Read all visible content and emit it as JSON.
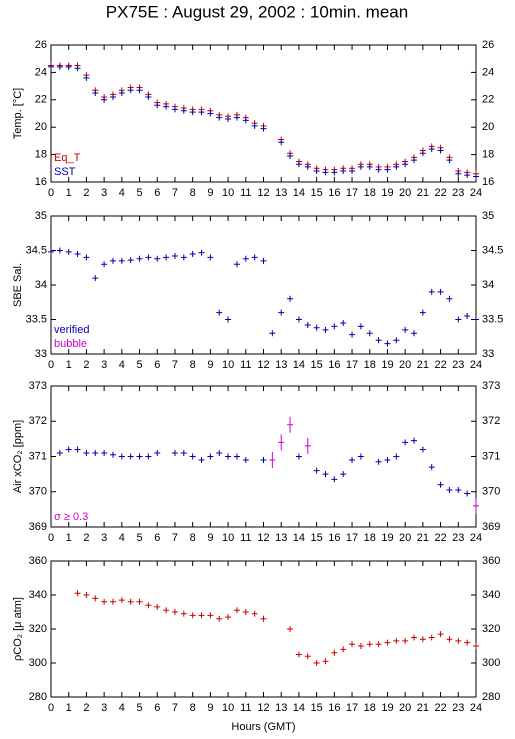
{
  "title": "PX75E : August 29, 2002 : 10min. mean",
  "chart_data": [
    {
      "type": "scatter",
      "y_label": "Temp. [°C]",
      "xlim": [
        0,
        24
      ],
      "ylim": [
        16,
        26
      ],
      "xticks": [
        0,
        1,
        2,
        3,
        4,
        5,
        6,
        7,
        8,
        9,
        10,
        11,
        12,
        13,
        14,
        15,
        16,
        17,
        18,
        19,
        20,
        21,
        22,
        23,
        24
      ],
      "yticks": [
        16,
        18,
        20,
        22,
        24,
        26
      ],
      "legend": "lower left",
      "x": [
        0,
        0.5,
        1,
        1.5,
        2,
        2.5,
        3,
        3.5,
        4,
        4.5,
        5,
        5.5,
        6,
        6.5,
        7,
        7.5,
        8,
        8.5,
        9,
        9.5,
        10,
        10.5,
        11,
        11.5,
        12,
        12.5,
        13,
        13.5,
        14,
        14.5,
        15,
        15.5,
        16,
        16.5,
        17,
        17.5,
        18,
        18.5,
        19,
        19.5,
        20,
        20.5,
        21,
        21.5,
        22,
        22.5,
        23,
        23.5,
        24
      ],
      "series": [
        {
          "name": "Eq_T",
          "color": "#cc0000",
          "values": [
            24.5,
            24.5,
            24.5,
            24.5,
            23.8,
            22.7,
            22.2,
            22.4,
            22.7,
            22.9,
            22.9,
            22.4,
            21.8,
            21.7,
            21.5,
            21.4,
            21.3,
            21.3,
            21.2,
            20.9,
            20.8,
            20.9,
            20.7,
            20.3,
            20.1,
            null,
            19.1,
            18.1,
            17.5,
            17.3,
            17.0,
            16.9,
            16.9,
            17.0,
            17.0,
            17.3,
            17.3,
            17.1,
            17.1,
            17.3,
            17.5,
            17.8,
            18.3,
            18.6,
            18.5,
            17.8,
            16.8,
            16.7,
            16.6
          ]
        },
        {
          "name": "SST",
          "color": "#0000aa",
          "values": [
            24.4,
            24.4,
            24.4,
            24.3,
            23.6,
            22.5,
            22.0,
            22.2,
            22.5,
            22.7,
            22.7,
            22.2,
            21.6,
            21.5,
            21.3,
            21.2,
            21.1,
            21.1,
            21.0,
            20.7,
            20.6,
            20.7,
            20.5,
            20.1,
            19.9,
            null,
            18.9,
            17.9,
            17.3,
            17.1,
            16.8,
            16.7,
            16.7,
            16.8,
            16.8,
            17.1,
            17.1,
            16.9,
            16.9,
            17.1,
            17.3,
            17.6,
            18.1,
            18.4,
            18.3,
            17.6,
            16.6,
            16.5,
            16.4
          ]
        }
      ]
    },
    {
      "type": "scatter",
      "y_label": "SBE Sal.",
      "xlim": [
        0,
        24
      ],
      "ylim": [
        33,
        35
      ],
      "xticks": [
        0,
        1,
        2,
        3,
        4,
        5,
        6,
        7,
        8,
        9,
        10,
        11,
        12,
        13,
        14,
        15,
        16,
        17,
        18,
        19,
        20,
        21,
        22,
        23,
        24
      ],
      "yticks": [
        33,
        33.5,
        34,
        34.5,
        35
      ],
      "legend": "lower left",
      "x": [
        0,
        0.5,
        1,
        1.5,
        2,
        2.5,
        3,
        3.5,
        4,
        4.5,
        5,
        5.5,
        6,
        6.5,
        7,
        7.5,
        8,
        8.5,
        9,
        9.5,
        10,
        10.5,
        11,
        11.5,
        12,
        12.5,
        13,
        13.5,
        14,
        14.5,
        15,
        15.5,
        16,
        16.5,
        17,
        17.5,
        18,
        18.5,
        19,
        19.5,
        20,
        20.5,
        21,
        21.5,
        22,
        22.5,
        23,
        23.5,
        24
      ],
      "series": [
        {
          "name": "verified",
          "color": "#0000aa",
          "values": [
            34.48,
            34.5,
            34.48,
            34.45,
            34.4,
            34.1,
            34.3,
            34.35,
            34.35,
            34.36,
            34.38,
            34.4,
            34.38,
            34.4,
            34.42,
            34.4,
            34.45,
            34.47,
            34.4,
            33.6,
            33.5,
            34.3,
            34.38,
            34.4,
            34.35,
            33.3,
            33.6,
            33.8,
            33.5,
            33.42,
            33.38,
            33.35,
            33.4,
            33.45,
            33.28,
            33.4,
            33.3,
            33.2,
            33.15,
            33.2,
            33.35,
            33.3,
            33.6,
            33.9,
            33.9,
            33.8,
            33.5,
            33.55,
            33.5
          ]
        },
        {
          "name": "bubble",
          "color": "#cc00cc",
          "values": [
            null,
            null,
            null,
            null,
            null,
            null,
            null,
            null,
            null,
            null,
            null,
            null,
            null,
            null,
            null,
            null,
            null,
            null,
            null,
            null,
            null,
            null,
            null,
            null,
            null,
            null,
            null,
            null,
            null,
            null,
            null,
            null,
            null,
            null,
            null,
            null,
            null,
            null,
            null,
            null,
            null,
            null,
            null,
            null,
            null,
            null,
            null,
            null,
            null
          ]
        }
      ]
    },
    {
      "type": "scatter",
      "y_label": "Air xCO₂ [ppm]",
      "xlim": [
        0,
        24
      ],
      "ylim": [
        369,
        373
      ],
      "xticks": [
        0,
        1,
        2,
        3,
        4,
        5,
        6,
        7,
        8,
        9,
        10,
        11,
        12,
        13,
        14,
        15,
        16,
        17,
        18,
        19,
        20,
        21,
        22,
        23,
        24
      ],
      "yticks": [
        369,
        370,
        371,
        372,
        373
      ],
      "legend": "lower left",
      "x": [
        0,
        0.5,
        1,
        1.5,
        2,
        2.5,
        3,
        3.5,
        4,
        4.5,
        5,
        5.5,
        6,
        6.5,
        7,
        7.5,
        8,
        8.5,
        9,
        9.5,
        10,
        10.5,
        11,
        11.5,
        12,
        12.5,
        13,
        13.5,
        14,
        14.5,
        15,
        15.5,
        16,
        16.5,
        17,
        17.5,
        18,
        18.5,
        19,
        19.5,
        20,
        20.5,
        21,
        21.5,
        22,
        22.5,
        23,
        23.5,
        24
      ],
      "series": [
        {
          "color": "#0000aa",
          "values": [
            null,
            371.1,
            371.2,
            371.2,
            371.1,
            371.1,
            371.1,
            371.05,
            371.0,
            371.0,
            371.0,
            371.0,
            371.1,
            null,
            371.1,
            371.1,
            371.0,
            370.9,
            371.0,
            371.1,
            371.0,
            371.0,
            370.9,
            null,
            370.9,
            null,
            null,
            null,
            371.0,
            null,
            370.6,
            370.5,
            370.35,
            370.5,
            370.9,
            371.0,
            null,
            370.85,
            370.9,
            371.0,
            371.4,
            371.45,
            371.2,
            370.7,
            370.2,
            370.05,
            370.05,
            369.95,
            null
          ]
        },
        {
          "name": "σ ≥ 0.3",
          "color": "#cc00cc",
          "values": [
            null,
            null,
            null,
            null,
            null,
            null,
            null,
            null,
            null,
            null,
            null,
            null,
            null,
            null,
            null,
            null,
            null,
            null,
            null,
            null,
            null,
            null,
            null,
            null,
            null,
            370.9,
            371.4,
            371.9,
            null,
            371.3,
            null,
            null,
            null,
            null,
            null,
            null,
            null,
            null,
            null,
            null,
            null,
            null,
            null,
            null,
            null,
            null,
            null,
            null,
            369.6
          ]
        }
      ]
    },
    {
      "type": "scatter",
      "y_label": "ρCO₂ [μ atm]",
      "x_label": "Hours (GMT)",
      "xlim": [
        0,
        24
      ],
      "ylim": [
        280,
        360
      ],
      "xticks": [
        0,
        1,
        2,
        3,
        4,
        5,
        6,
        7,
        8,
        9,
        10,
        11,
        12,
        13,
        14,
        15,
        16,
        17,
        18,
        19,
        20,
        21,
        22,
        23,
        24
      ],
      "yticks": [
        280,
        300,
        320,
        340,
        360
      ],
      "x": [
        0,
        0.5,
        1,
        1.5,
        2,
        2.5,
        3,
        3.5,
        4,
        4.5,
        5,
        5.5,
        6,
        6.5,
        7,
        7.5,
        8,
        8.5,
        9,
        9.5,
        10,
        10.5,
        11,
        11.5,
        12,
        12.5,
        13,
        13.5,
        14,
        14.5,
        15,
        15.5,
        16,
        16.5,
        17,
        17.5,
        18,
        18.5,
        19,
        19.5,
        20,
        20.5,
        21,
        21.5,
        22,
        22.5,
        23,
        23.5,
        24
      ],
      "series": [
        {
          "color": "#cc0000",
          "values": [
            null,
            null,
            null,
            341,
            340,
            338,
            336,
            336,
            337,
            336,
            336,
            334,
            333,
            331,
            330,
            329,
            328,
            328,
            328,
            326,
            327,
            331,
            330,
            329,
            326,
            null,
            null,
            320,
            305,
            304,
            300,
            301,
            306,
            308,
            311,
            310,
            311,
            311,
            312,
            313,
            313,
            315,
            314,
            315,
            317,
            314,
            313,
            312,
            310
          ]
        }
      ]
    }
  ]
}
